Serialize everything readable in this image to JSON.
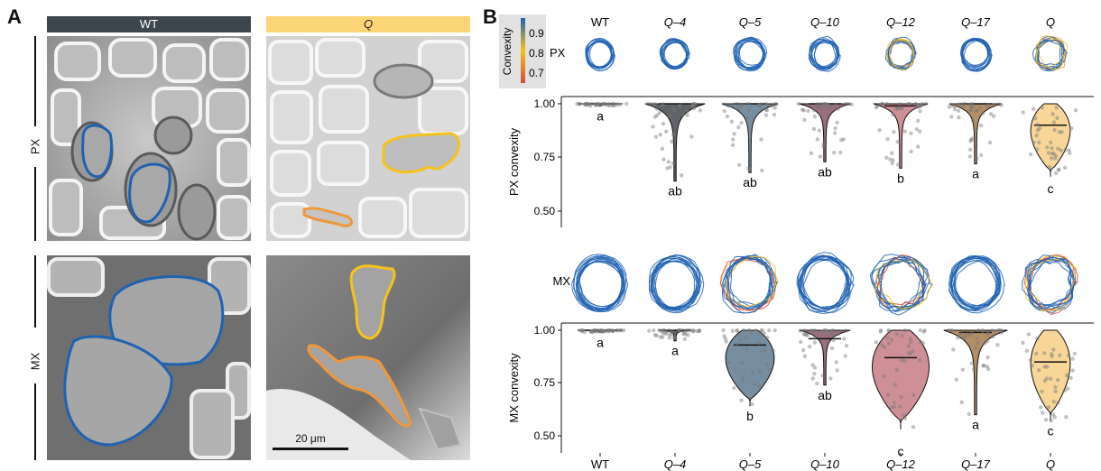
{
  "panel_a": {
    "letter": "A",
    "col_labels": [
      "WT",
      "Q"
    ],
    "row_labels": [
      "PX",
      "MX"
    ],
    "scale_bar": "20 μm"
  },
  "panel_b": {
    "letter": "B",
    "legend": {
      "title": "Convexity",
      "ticks": [
        "0.9",
        "0.8",
        "0.7"
      ]
    },
    "shape_row_labels": [
      "PX",
      "MX"
    ]
  },
  "colors": {
    "blue": "#1f62b3",
    "yellow": "#f6c21b",
    "orange": "#f0973a",
    "wt": "#2b2b2b",
    "q4": "#44484c",
    "q5": "#5f7a8f",
    "q10": "#8a5565",
    "q12": "#c77b85",
    "q17": "#a77a4a",
    "q": "#f6cf86"
  },
  "chart_data": [
    {
      "type": "violin",
      "ylabel": "PX convexity",
      "ylim": [
        0.4,
        1.0
      ],
      "yticks": [
        "1.00",
        "0.75",
        "0.50"
      ],
      "categories": [
        "WT",
        "Q–4",
        "Q–5",
        "Q–10",
        "Q–12",
        "Q–17",
        "Q"
      ],
      "min": [
        0.99,
        0.64,
        0.68,
        0.73,
        0.7,
        0.72,
        0.66
      ],
      "median": [
        1.0,
        1.0,
        1.0,
        1.0,
        0.99,
        1.0,
        0.9
      ],
      "letters": [
        "a",
        "ab",
        "ab",
        "ab",
        "b",
        "a",
        "c"
      ]
    },
    {
      "type": "violin",
      "ylabel": "MX convexity",
      "ylim": [
        0.45,
        1.0
      ],
      "yticks": [
        "1.00",
        "0.75",
        "0.50"
      ],
      "categories": [
        "WT",
        "Q–4",
        "Q–5",
        "Q–10",
        "Q–12",
        "Q–17",
        "Q"
      ],
      "min": [
        0.99,
        0.95,
        0.64,
        0.74,
        0.53,
        0.6,
        0.57
      ],
      "median": [
        1.0,
        1.0,
        0.93,
        0.96,
        0.87,
        0.99,
        0.85
      ],
      "letters": [
        "a",
        "a",
        "b",
        "ab",
        "c",
        "a",
        "c"
      ]
    }
  ]
}
